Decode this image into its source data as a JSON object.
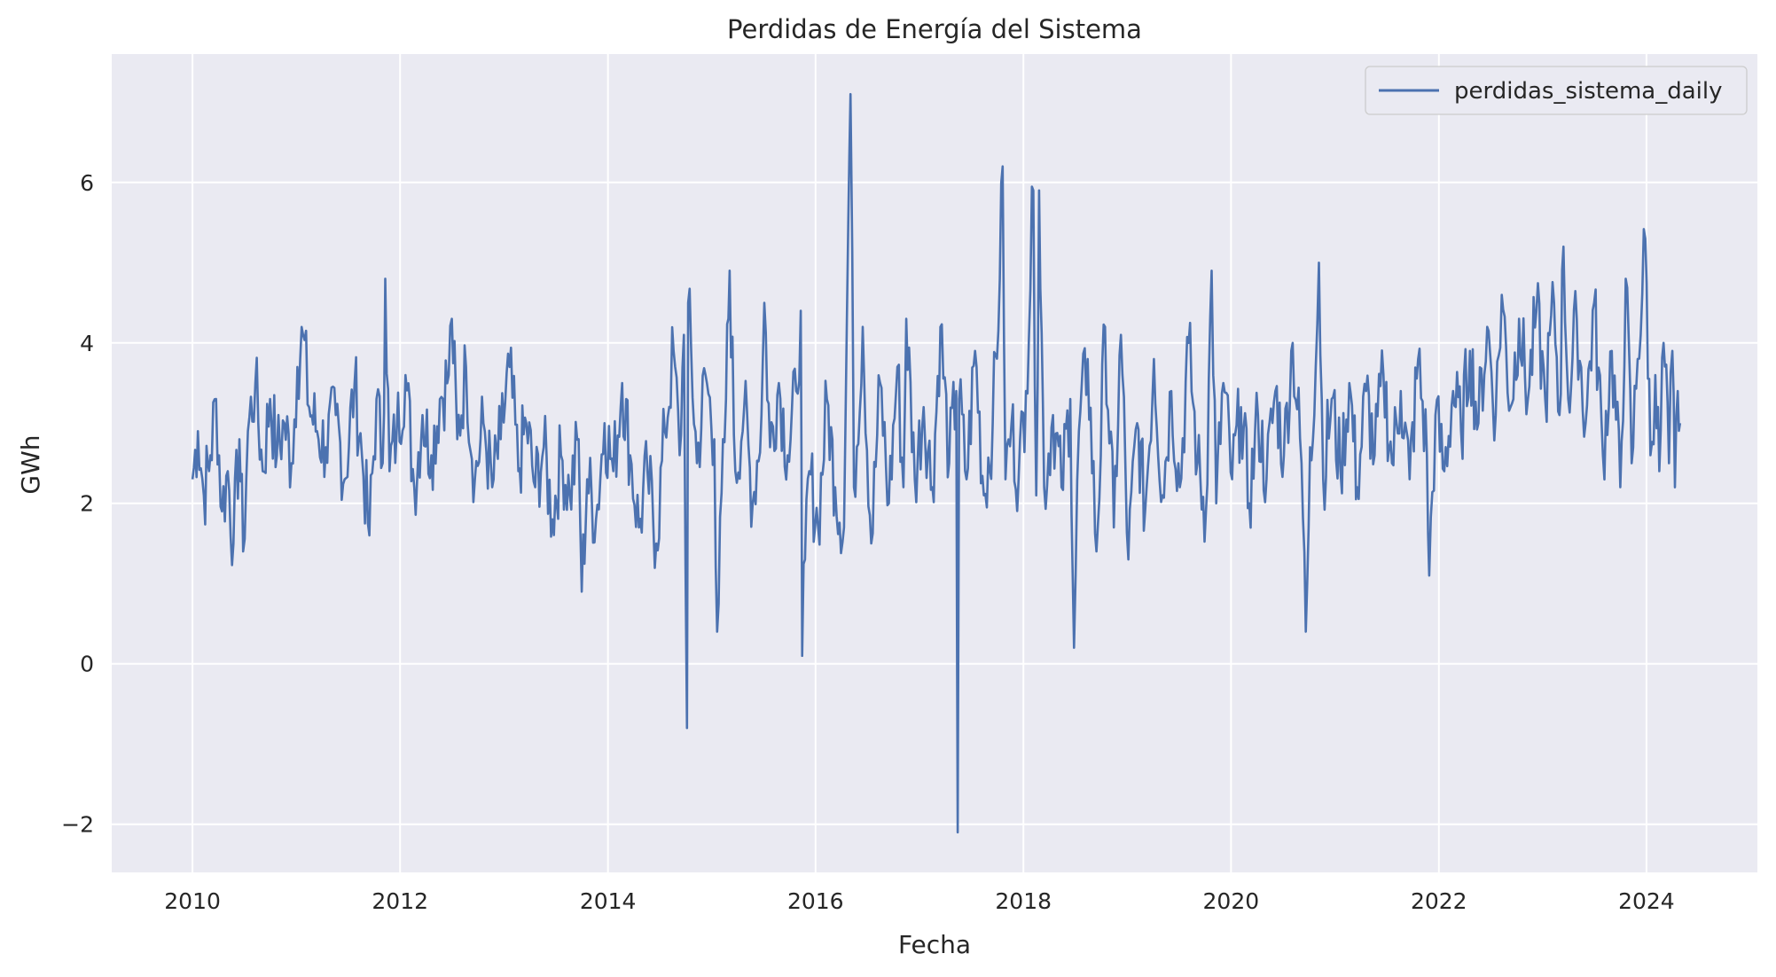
{
  "chart_data": {
    "type": "line",
    "title": "Perdidas de Energía del Sistema",
    "xlabel": "Fecha",
    "ylabel": "GWh",
    "x_ticks": [
      "2010",
      "2012",
      "2014",
      "2016",
      "2018",
      "2020",
      "2022",
      "2024"
    ],
    "y_ticks": [
      "−2",
      "0",
      "2",
      "4",
      "6"
    ],
    "xlim": [
      "2009-03-23",
      "2025-01-25"
    ],
    "ylim": [
      -2.6,
      7.6
    ],
    "grid": true,
    "legend_position": "top-right",
    "series_color": "#4c72b0",
    "background_color": "#eaeaf2",
    "series": [
      {
        "name": "perdidas_sistema_daily",
        "points": [
          [
            "2010-01-01",
            2.3
          ],
          [
            "2010-01-20",
            2.9
          ],
          [
            "2010-02-10",
            2.1
          ],
          [
            "2010-03-05",
            2.6
          ],
          [
            "2010-03-25",
            3.3
          ],
          [
            "2010-04-15",
            1.9
          ],
          [
            "2010-05-05",
            2.4
          ],
          [
            "2010-05-25",
            1.5
          ],
          [
            "2010-06-15",
            2.8
          ],
          [
            "2010-06-28",
            1.4
          ],
          [
            "2010-07-15",
            2.9
          ],
          [
            "2010-08-10",
            3.5
          ],
          [
            "2010-09-05",
            2.4
          ],
          [
            "2010-10-01",
            3.3
          ],
          [
            "2010-10-25",
            2.6
          ],
          [
            "2010-11-20",
            3.0
          ],
          [
            "2010-12-15",
            2.5
          ],
          [
            "2011-01-05",
            3.7
          ],
          [
            "2011-01-25",
            4.1
          ],
          [
            "2011-02-15",
            3.2
          ],
          [
            "2011-03-15",
            2.9
          ],
          [
            "2011-04-15",
            2.7
          ],
          [
            "2011-05-20",
            3.1
          ],
          [
            "2011-06-20",
            2.3
          ],
          [
            "2011-07-25",
            3.5
          ],
          [
            "2011-08-20",
            2.6
          ],
          [
            "2011-09-15",
            1.6
          ],
          [
            "2011-10-10",
            3.3
          ],
          [
            "2011-11-01",
            2.5
          ],
          [
            "2011-11-10",
            4.8
          ],
          [
            "2011-11-25",
            2.4
          ],
          [
            "2011-12-20",
            2.9
          ],
          [
            "2012-01-20",
            3.6
          ],
          [
            "2012-02-20",
            2.2
          ],
          [
            "2012-03-20",
            3.1
          ],
          [
            "2012-04-20",
            2.6
          ],
          [
            "2012-05-20",
            3.3
          ],
          [
            "2012-06-20",
            3.6
          ],
          [
            "2012-07-01",
            4.3
          ],
          [
            "2012-07-20",
            2.8
          ],
          [
            "2012-08-20",
            3.7
          ],
          [
            "2012-09-20",
            2.3
          ],
          [
            "2012-10-20",
            3.0
          ],
          [
            "2012-11-20",
            2.2
          ],
          [
            "2012-12-20",
            2.8
          ],
          [
            "2013-01-20",
            3.7
          ],
          [
            "2013-02-20",
            2.4
          ],
          [
            "2013-03-20",
            3.0
          ],
          [
            "2013-04-20",
            2.2
          ],
          [
            "2013-05-20",
            2.7
          ],
          [
            "2013-06-20",
            1.8
          ],
          [
            "2013-07-20",
            2.6
          ],
          [
            "2013-08-20",
            2.1
          ],
          [
            "2013-09-20",
            2.8
          ],
          [
            "2013-10-01",
            0.9
          ],
          [
            "2013-10-20",
            2.3
          ],
          [
            "2013-11-20",
            1.8
          ],
          [
            "2013-12-20",
            3.0
          ],
          [
            "2014-01-20",
            2.4
          ],
          [
            "2014-02-20",
            3.5
          ],
          [
            "2014-03-20",
            2.6
          ],
          [
            "2014-04-20",
            1.7
          ],
          [
            "2014-05-20",
            2.4
          ],
          [
            "2014-06-20",
            1.5
          ],
          [
            "2014-07-20",
            2.9
          ],
          [
            "2014-08-20",
            3.9
          ],
          [
            "2014-09-10",
            2.6
          ],
          [
            "2014-09-25",
            4.1
          ],
          [
            "2014-10-06",
            -0.8
          ],
          [
            "2014-10-10",
            4.5
          ],
          [
            "2014-11-10",
            2.5
          ],
          [
            "2014-12-10",
            3.6
          ],
          [
            "2015-01-10",
            2.8
          ],
          [
            "2015-01-20",
            0.4
          ],
          [
            "2015-02-20",
            3.3
          ],
          [
            "2015-03-05",
            4.9
          ],
          [
            "2015-03-25",
            2.4
          ],
          [
            "2015-04-25",
            3.2
          ],
          [
            "2015-05-25",
            2.0
          ],
          [
            "2015-06-25",
            3.1
          ],
          [
            "2015-07-05",
            4.5
          ],
          [
            "2015-07-25",
            2.7
          ],
          [
            "2015-08-25",
            3.5
          ],
          [
            "2015-09-25",
            2.6
          ],
          [
            "2015-10-25",
            3.4
          ],
          [
            "2015-11-10",
            4.4
          ],
          [
            "2015-11-15",
            0.1
          ],
          [
            "2015-11-25",
            1.3
          ],
          [
            "2015-12-10",
            2.4
          ],
          [
            "2016-01-10",
            1.7
          ],
          [
            "2016-02-10",
            3.3
          ],
          [
            "2016-03-10",
            2.2
          ],
          [
            "2016-04-10",
            1.7
          ],
          [
            "2016-04-25",
            5.5
          ],
          [
            "2016-05-03",
            7.1
          ],
          [
            "2016-05-15",
            2.2
          ],
          [
            "2016-06-15",
            4.2
          ],
          [
            "2016-07-15",
            1.5
          ],
          [
            "2016-08-15",
            3.5
          ],
          [
            "2016-09-15",
            2.0
          ],
          [
            "2016-10-15",
            3.7
          ],
          [
            "2016-11-05",
            2.2
          ],
          [
            "2016-11-15",
            4.3
          ],
          [
            "2016-12-15",
            2.3
          ],
          [
            "2017-01-15",
            3.2
          ],
          [
            "2017-02-15",
            2.2
          ],
          [
            "2017-03-15",
            4.2
          ],
          [
            "2017-04-15",
            2.5
          ],
          [
            "2017-05-10",
            3.4
          ],
          [
            "2017-05-15",
            -2.1
          ],
          [
            "2017-05-20",
            3.3
          ],
          [
            "2017-06-15",
            2.3
          ],
          [
            "2017-07-15",
            3.9
          ],
          [
            "2017-08-15",
            2.1
          ],
          [
            "2017-09-15",
            3.0
          ],
          [
            "2017-10-10",
            4.8
          ],
          [
            "2017-10-20",
            6.2
          ],
          [
            "2017-10-30",
            2.3
          ],
          [
            "2017-11-20",
            3.0
          ],
          [
            "2017-12-15",
            2.3
          ],
          [
            "2018-01-10",
            3.4
          ],
          [
            "2018-02-05",
            5.9
          ],
          [
            "2018-02-15",
            2.1
          ],
          [
            "2018-02-25",
            5.9
          ],
          [
            "2018-03-15",
            2.2
          ],
          [
            "2018-04-15",
            3.1
          ],
          [
            "2018-05-15",
            2.2
          ],
          [
            "2018-06-15",
            3.3
          ],
          [
            "2018-06-28",
            0.2
          ],
          [
            "2018-07-15",
            2.9
          ],
          [
            "2018-08-15",
            3.8
          ],
          [
            "2018-09-15",
            1.4
          ],
          [
            "2018-10-15",
            4.2
          ],
          [
            "2018-11-15",
            1.7
          ],
          [
            "2018-12-10",
            4.1
          ],
          [
            "2019-01-05",
            1.3
          ],
          [
            "2019-02-05",
            3.0
          ],
          [
            "2019-03-05",
            1.9
          ],
          [
            "2019-04-05",
            3.8
          ],
          [
            "2019-05-05",
            2.1
          ],
          [
            "2019-06-05",
            3.4
          ],
          [
            "2019-07-05",
            2.2
          ],
          [
            "2019-08-05",
            4.0
          ],
          [
            "2019-09-05",
            2.5
          ],
          [
            "2019-10-05",
            1.9
          ],
          [
            "2019-10-25",
            4.9
          ],
          [
            "2019-11-10",
            2.0
          ],
          [
            "2019-12-05",
            3.5
          ],
          [
            "2020-01-05",
            2.3
          ],
          [
            "2020-02-05",
            3.2
          ],
          [
            "2020-03-05",
            2.0
          ],
          [
            "2020-04-05",
            3.1
          ],
          [
            "2020-05-05",
            2.3
          ],
          [
            "2020-06-05",
            3.4
          ],
          [
            "2020-07-05",
            2.6
          ],
          [
            "2020-08-05",
            4.0
          ],
          [
            "2020-09-05",
            2.5
          ],
          [
            "2020-09-20",
            0.4
          ],
          [
            "2020-10-05",
            2.7
          ],
          [
            "2020-10-25",
            3.7
          ],
          [
            "2020-11-05",
            5.0
          ],
          [
            "2020-11-20",
            2.3
          ],
          [
            "2020-12-20",
            3.3
          ],
          [
            "2021-01-20",
            2.4
          ],
          [
            "2021-02-20",
            3.5
          ],
          [
            "2021-03-20",
            2.2
          ],
          [
            "2021-04-20",
            3.4
          ],
          [
            "2021-05-20",
            2.6
          ],
          [
            "2021-06-20",
            3.6
          ],
          [
            "2021-07-20",
            2.5
          ],
          [
            "2021-08-20",
            3.4
          ],
          [
            "2021-09-20",
            2.3
          ],
          [
            "2021-10-20",
            3.8
          ],
          [
            "2021-11-20",
            2.6
          ],
          [
            "2021-11-28",
            1.1
          ],
          [
            "2021-12-20",
            3.1
          ],
          [
            "2022-01-20",
            2.4
          ],
          [
            "2022-02-20",
            3.4
          ],
          [
            "2022-03-20",
            2.9
          ],
          [
            "2022-04-20",
            3.9
          ],
          [
            "2022-05-20",
            3.0
          ],
          [
            "2022-06-20",
            4.2
          ],
          [
            "2022-07-20",
            3.1
          ],
          [
            "2022-08-10",
            4.6
          ],
          [
            "2022-09-10",
            3.2
          ],
          [
            "2022-10-10",
            4.3
          ],
          [
            "2022-11-10",
            3.3
          ],
          [
            "2022-12-10",
            4.4
          ],
          [
            "2023-01-10",
            3.3
          ],
          [
            "2023-02-10",
            4.5
          ],
          [
            "2023-03-01",
            3.1
          ],
          [
            "2023-03-15",
            5.2
          ],
          [
            "2023-04-01",
            3.3
          ],
          [
            "2023-05-01",
            4.3
          ],
          [
            "2023-06-01",
            3.0
          ],
          [
            "2023-07-01",
            4.5
          ],
          [
            "2023-08-01",
            2.6
          ],
          [
            "2023-09-01",
            3.9
          ],
          [
            "2023-10-01",
            2.2
          ],
          [
            "2023-10-20",
            4.8
          ],
          [
            "2023-11-10",
            2.5
          ],
          [
            "2023-12-01",
            3.8
          ],
          [
            "2023-12-28",
            5.3
          ],
          [
            "2024-01-15",
            2.6
          ],
          [
            "2024-02-01",
            3.6
          ],
          [
            "2024-02-15",
            2.4
          ],
          [
            "2024-03-01",
            4.0
          ],
          [
            "2024-03-20",
            2.5
          ],
          [
            "2024-04-01",
            3.9
          ],
          [
            "2024-04-10",
            2.2
          ],
          [
            "2024-04-20",
            3.4
          ],
          [
            "2024-04-28",
            3.0
          ]
        ]
      }
    ]
  }
}
